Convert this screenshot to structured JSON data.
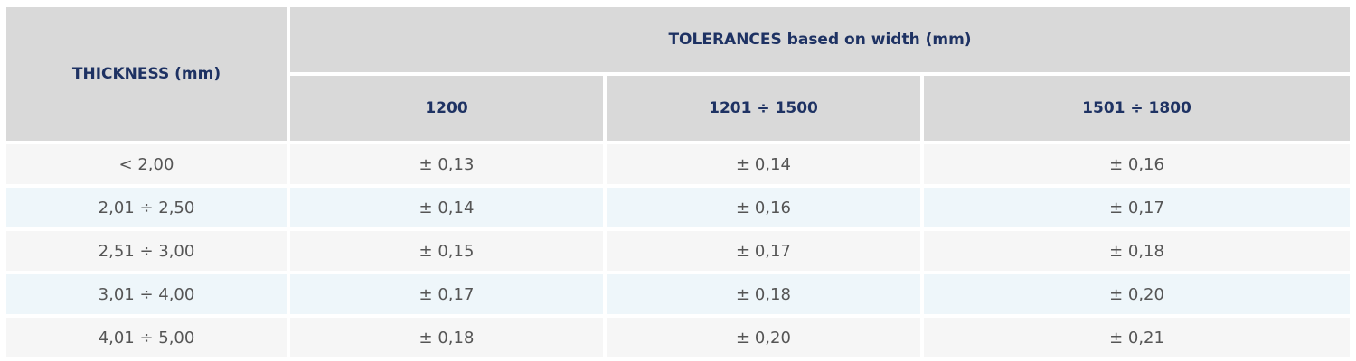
{
  "table": {
    "thickness_header": "THICKNESS (mm)",
    "tolerances_header": "TOLERANCES based on width (mm)",
    "width_headers": [
      "1200",
      "1201 ÷ 1500",
      "1501 ÷ 1800"
    ],
    "rows": [
      {
        "thickness": "< 2,00",
        "values": [
          "± 0,13",
          "± 0,14",
          "± 0,16"
        ]
      },
      {
        "thickness": "2,01 ÷ 2,50",
        "values": [
          "± 0,14",
          "± 0,16",
          "± 0,17"
        ]
      },
      {
        "thickness": "2,51 ÷ 3,00",
        "values": [
          "± 0,15",
          "± 0,17",
          "± 0,18"
        ]
      },
      {
        "thickness": "3,01 ÷ 4,00",
        "values": [
          "± 0,17",
          "± 0,18",
          "± 0,20"
        ]
      },
      {
        "thickness": "4,01 ÷ 5,00",
        "values": [
          "± 0,18",
          "± 0,20",
          "± 0,21"
        ]
      }
    ]
  }
}
